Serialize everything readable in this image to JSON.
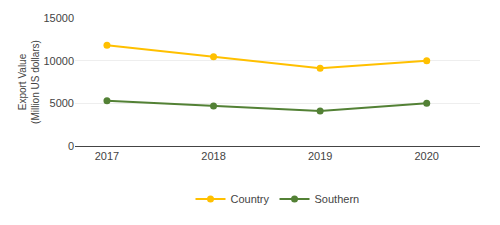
{
  "chart_data": {
    "type": "line",
    "x": [
      2017,
      2018,
      2019,
      2020
    ],
    "series": [
      {
        "name": "Country",
        "color": "#FFC000",
        "values": [
          11800,
          10450,
          9100,
          10000
        ]
      },
      {
        "name": "Southern",
        "color": "#538135",
        "values": [
          5300,
          4700,
          4100,
          5000
        ]
      }
    ],
    "ylabel": "Export Value\n(Million US dollars)",
    "xlim": [
      2016.7,
      2020.5
    ],
    "xticks": [
      2017,
      2018,
      2019,
      2020
    ],
    "ylim": [
      0,
      15000
    ],
    "yticks": [
      0,
      5000,
      10000,
      15000
    ],
    "grid": "y",
    "legend": "bottom",
    "marker": "circle"
  }
}
